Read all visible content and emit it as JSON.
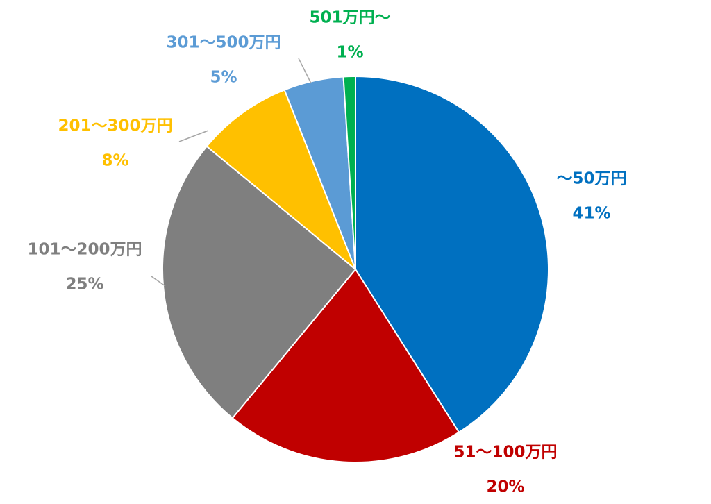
{
  "chart_data": {
    "type": "pie",
    "categories": [
      "～50万円",
      "51～100万円",
      "101～200万円",
      "201～300万円",
      "301～500万円",
      "501万円～"
    ],
    "values": [
      41,
      20,
      25,
      8,
      5,
      1
    ],
    "value_labels": [
      "41%",
      "20%",
      "25%",
      "8%",
      "5%",
      "1%"
    ],
    "colors": [
      "#0070c0",
      "#c00000",
      "#7f7f7f",
      "#ffc000",
      "#5b9bd5",
      "#00b050"
    ]
  }
}
